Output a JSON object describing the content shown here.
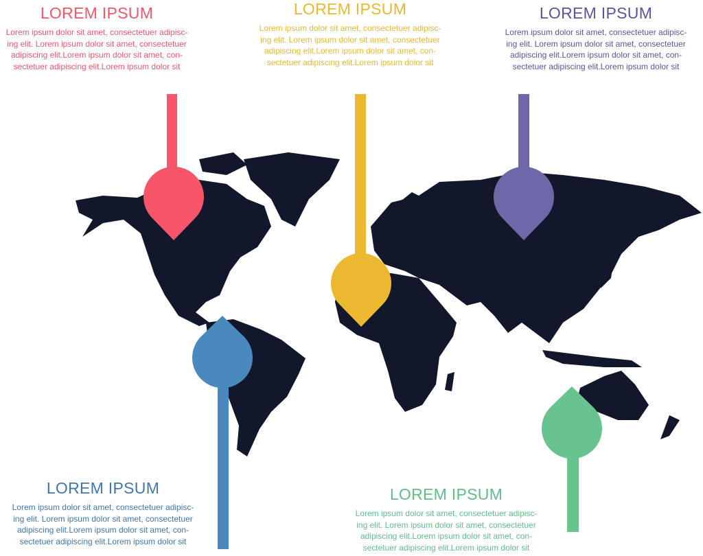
{
  "colors": {
    "map": "#12172b",
    "red": "#f7556a",
    "yellow": "#ebb82f",
    "purple": "#6e68a8",
    "blue": "#4a89bd",
    "green": "#69c38e"
  },
  "callouts": [
    {
      "id": "red",
      "title": "LOREM IPSUM",
      "lines": [
        "Lorem ipsum dolor sit amet, consectetuer adipisc-",
        "ing elit. Lorem ipsum dolor sit amet, consectetuer",
        "adipiscing elit.Lorem ipsum dolor sit amet, con-",
        "sectetuer adipiscing elit.Lorem ipsum dolor sit"
      ]
    },
    {
      "id": "yellow",
      "title": "LOREM IPSUM",
      "lines": [
        "Lorem ipsum dolor sit amet, consectetuer adipisc-",
        "ing elit. Lorem ipsum dolor sit amet, consectetuer",
        "adipiscing elit.Lorem ipsum dolor sit amet, con-",
        "sectetuer adipiscing elit.Lorem ipsum dolor sit"
      ]
    },
    {
      "id": "purple",
      "title": "LOREM IPSUM",
      "lines": [
        "Lorem ipsum dolor sit amet, consectetuer adipisc-",
        "ing elit. Lorem ipsum dolor sit amet, consectetuer",
        "adipiscing elit.Lorem ipsum dolor sit amet, con-",
        "sectetuer adipiscing elit.Lorem ipsum dolor sit"
      ]
    },
    {
      "id": "blue",
      "title": "LOREM IPSUM",
      "lines": [
        "Lorem ipsum dolor sit amet, consectetuer adipisc-",
        "ing elit. Lorem ipsum dolor sit amet, consectetuer",
        "adipiscing elit.Lorem ipsum dolor sit amet, con-",
        "sectetuer adipiscing elit.Lorem ipsum dolor sit"
      ]
    },
    {
      "id": "green",
      "title": "LOREM IPSUM",
      "lines": [
        "Lorem ipsum dolor sit amet, consectetuer adipisc-",
        "ing elit. Lorem ipsum dolor sit amet, consectetuer",
        "adipiscing elit.Lorem ipsum dolor sit amet, con-",
        "sectetuer adipiscing elit.Lorem ipsum dolor sit"
      ]
    }
  ]
}
